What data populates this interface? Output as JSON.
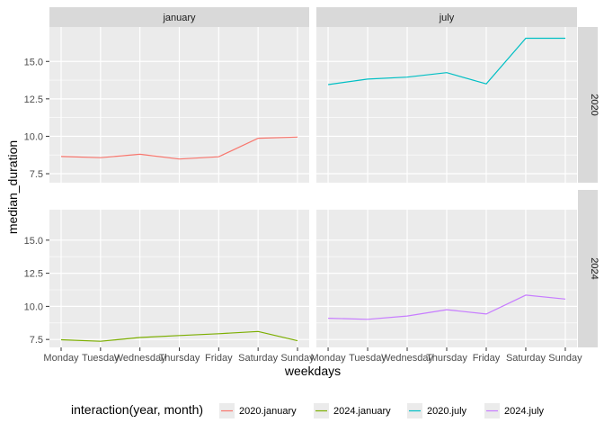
{
  "chart_data": {
    "type": "line",
    "xlabel": "weekdays",
    "ylabel": "median_duration",
    "categories": [
      "Monday",
      "Tuesday",
      "Wednesday",
      "Thursday",
      "Friday",
      "Saturday",
      "Sunday"
    ],
    "ylim": [
      6.9,
      17.3
    ],
    "yticks": [
      7.5,
      10.0,
      12.5,
      15.0
    ],
    "ytick_labels": [
      "7.5",
      "10.0",
      "12.5",
      "15.0"
    ],
    "grid": true,
    "facet_cols": [
      "january",
      "july"
    ],
    "facet_rows": [
      "2020",
      "2024"
    ],
    "legend": {
      "title": "interaction(year, month)",
      "position": "bottom",
      "entries": [
        "2020.january",
        "2024.january",
        "2020.july",
        "2024.july"
      ]
    },
    "series": [
      {
        "name": "2020.january",
        "color": "#F8766D",
        "row": 0,
        "col": 0,
        "values": [
          8.65,
          8.57,
          8.8,
          8.48,
          8.63,
          9.87,
          9.95
        ]
      },
      {
        "name": "2024.january",
        "color": "#7CAE00",
        "row": 1,
        "col": 0,
        "values": [
          7.48,
          7.36,
          7.65,
          7.8,
          7.93,
          8.1,
          7.4
        ]
      },
      {
        "name": "2020.july",
        "color": "#00BFC4",
        "row": 0,
        "col": 1,
        "values": [
          13.45,
          13.82,
          13.95,
          14.25,
          13.5,
          16.55,
          16.55
        ]
      },
      {
        "name": "2024.july",
        "color": "#C77CFF",
        "row": 1,
        "col": 1,
        "values": [
          9.1,
          9.02,
          9.27,
          9.75,
          9.42,
          10.85,
          10.55
        ]
      }
    ]
  }
}
